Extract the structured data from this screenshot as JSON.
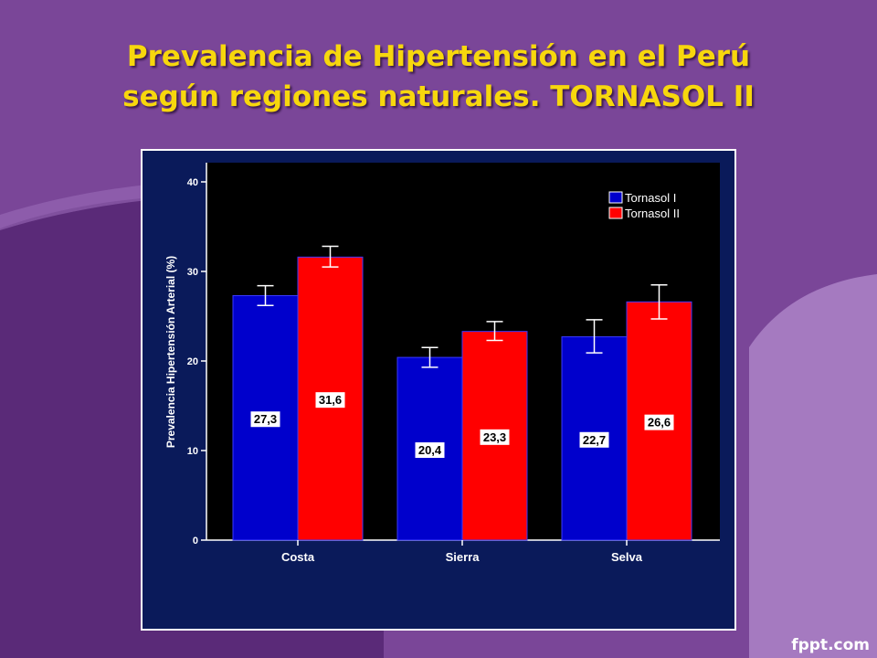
{
  "slide": {
    "title_line1": "Prevalencia de Hipertensión en el Perú",
    "title_line2": "según regiones naturales. TORNASOL II",
    "watermark": "fppt.com"
  },
  "colors": {
    "background": "#7a4698",
    "title": "#f7d70d",
    "plot_background": "#000000",
    "frame": "#0a1a5a",
    "series_1": "#0000cc",
    "series_2": "#ff0000"
  },
  "chart_data": {
    "type": "bar",
    "title": "",
    "xlabel": "",
    "ylabel": "Prevalencia Hipertensión Arterial (%)",
    "ylim": [
      0,
      40
    ],
    "yticks": [
      0,
      10,
      20,
      30,
      40
    ],
    "categories": [
      "Costa",
      "Sierra",
      "Selva"
    ],
    "legend_position": "top-right",
    "series": [
      {
        "name": "Tornasol I",
        "values": [
          27.3,
          20.4,
          22.7
        ],
        "labels": [
          "27,3",
          "20,4",
          "22,7"
        ],
        "error_low": [
          26.2,
          19.3,
          20.9
        ],
        "error_high": [
          28.4,
          21.5,
          24.6
        ]
      },
      {
        "name": "Tornasol II",
        "values": [
          31.6,
          23.3,
          26.6
        ],
        "labels": [
          "31,6",
          "23,3",
          "26,6"
        ],
        "error_low": [
          30.5,
          22.3,
          24.7
        ],
        "error_high": [
          32.8,
          24.4,
          28.5
        ]
      }
    ]
  }
}
